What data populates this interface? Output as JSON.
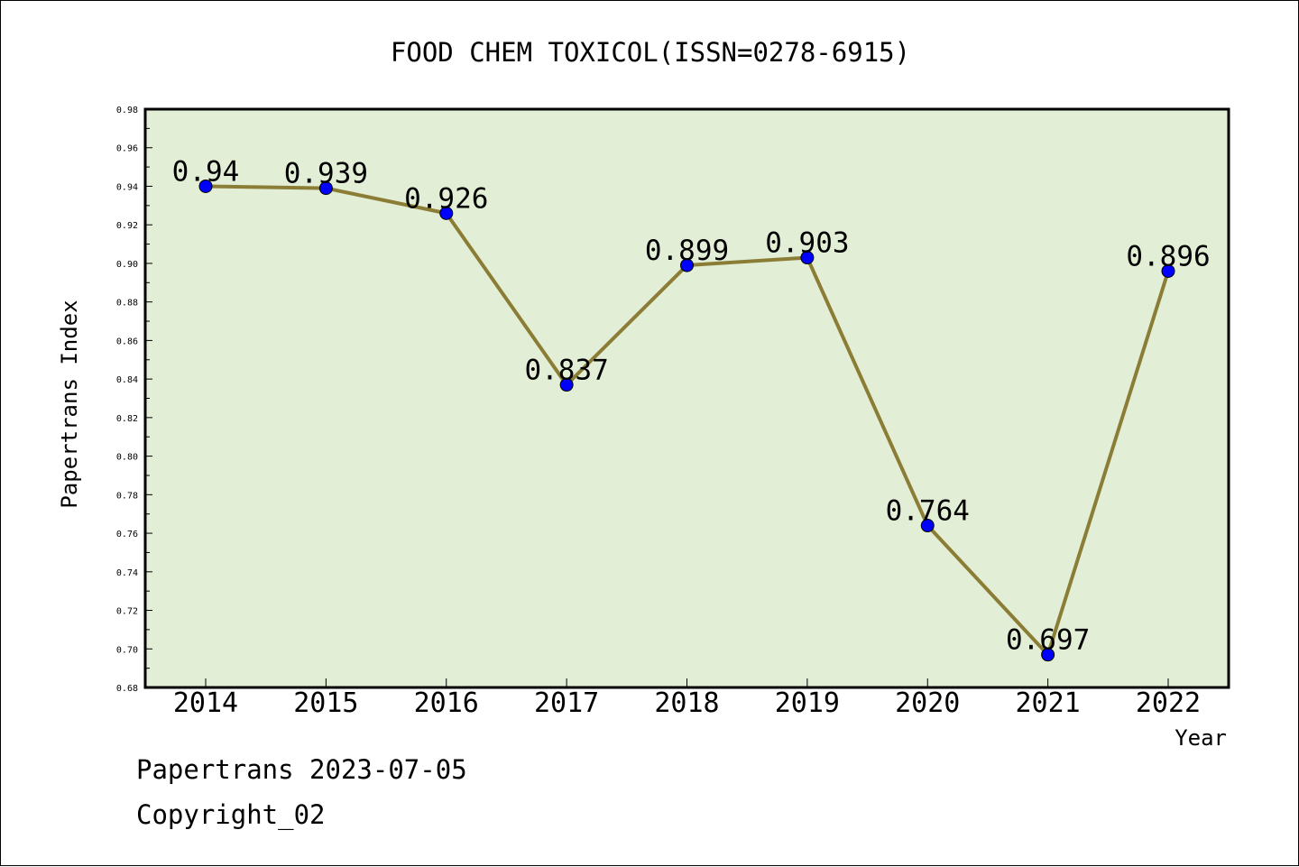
{
  "chart_data": {
    "type": "line",
    "title": "FOOD CHEM TOXICOL(ISSN=0278-6915)",
    "xlabel": "Year",
    "ylabel": "Papertrans Index",
    "categories": [
      "2014",
      "2015",
      "2016",
      "2017",
      "2018",
      "2019",
      "2020",
      "2021",
      "2022"
    ],
    "series": [
      {
        "values": [
          0.94,
          0.939,
          0.926,
          0.837,
          0.899,
          0.903,
          0.764,
          0.697,
          0.896
        ]
      }
    ],
    "data_labels": [
      "0.94",
      "0.939",
      "0.926",
      "0.837",
      "0.899",
      "0.903",
      "0.764",
      "0.697",
      "0.896"
    ],
    "ylim": [
      0.68,
      0.98
    ],
    "yticks": [
      "0.68",
      "0.70",
      "0.72",
      "0.74",
      "0.76",
      "0.78",
      "0.80",
      "0.82",
      "0.84",
      "0.86",
      "0.88",
      "0.90",
      "0.92",
      "0.94",
      "0.96",
      "0.98"
    ],
    "grid": false,
    "colors": {
      "plot_background": "#e2efd6",
      "line": "#8b7d35",
      "marker": "#0000ff"
    }
  },
  "footer": {
    "line1": "Papertrans 2023-07-05",
    "line2": "Copyright_02"
  }
}
